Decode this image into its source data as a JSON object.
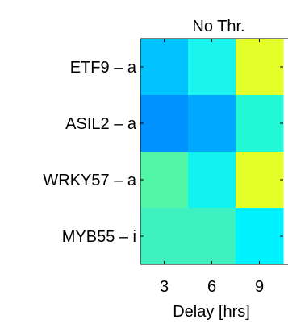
{
  "chart_data": {
    "type": "heatmap",
    "title": "No Thr.",
    "xlabel": "Delay [hrs]",
    "ylabel": "",
    "x": [
      "3",
      "6",
      "9"
    ],
    "y": [
      "ETF9 – a",
      "ASIL2 – a",
      "WRKY57 – a",
      "MYB55 – i"
    ],
    "cells": [
      [
        "#00c3ff",
        "#1bf3ef",
        "#e2ff2a"
      ],
      [
        "#0092ff",
        "#00a9ff",
        "#22f7d6"
      ],
      [
        "#51f6a6",
        "#12f3f0",
        "#e4fe28"
      ],
      [
        "#3ff1c0",
        "#3ff1c0",
        "#00f1ff"
      ]
    ],
    "grid": false
  }
}
